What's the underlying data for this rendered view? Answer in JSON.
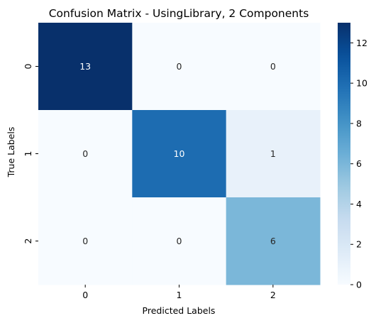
{
  "chart_data": {
    "type": "heatmap",
    "title": "Confusion Matrix - UsingLibrary, 2 Components",
    "xlabel": "Predicted Labels",
    "ylabel": "True Labels",
    "x_categories": [
      "0",
      "1",
      "2"
    ],
    "y_categories": [
      "0",
      "1",
      "2"
    ],
    "matrix": [
      [
        13,
        0,
        0
      ],
      [
        0,
        10,
        1
      ],
      [
        0,
        0,
        6
      ]
    ],
    "colorbar": {
      "colormap": "Blues",
      "vmin": 0,
      "vmax": 13,
      "ticks": [
        0,
        2,
        4,
        6,
        8,
        10,
        12
      ]
    },
    "colors": {
      "low": "#f7fbff",
      "high": "#08306b"
    }
  }
}
